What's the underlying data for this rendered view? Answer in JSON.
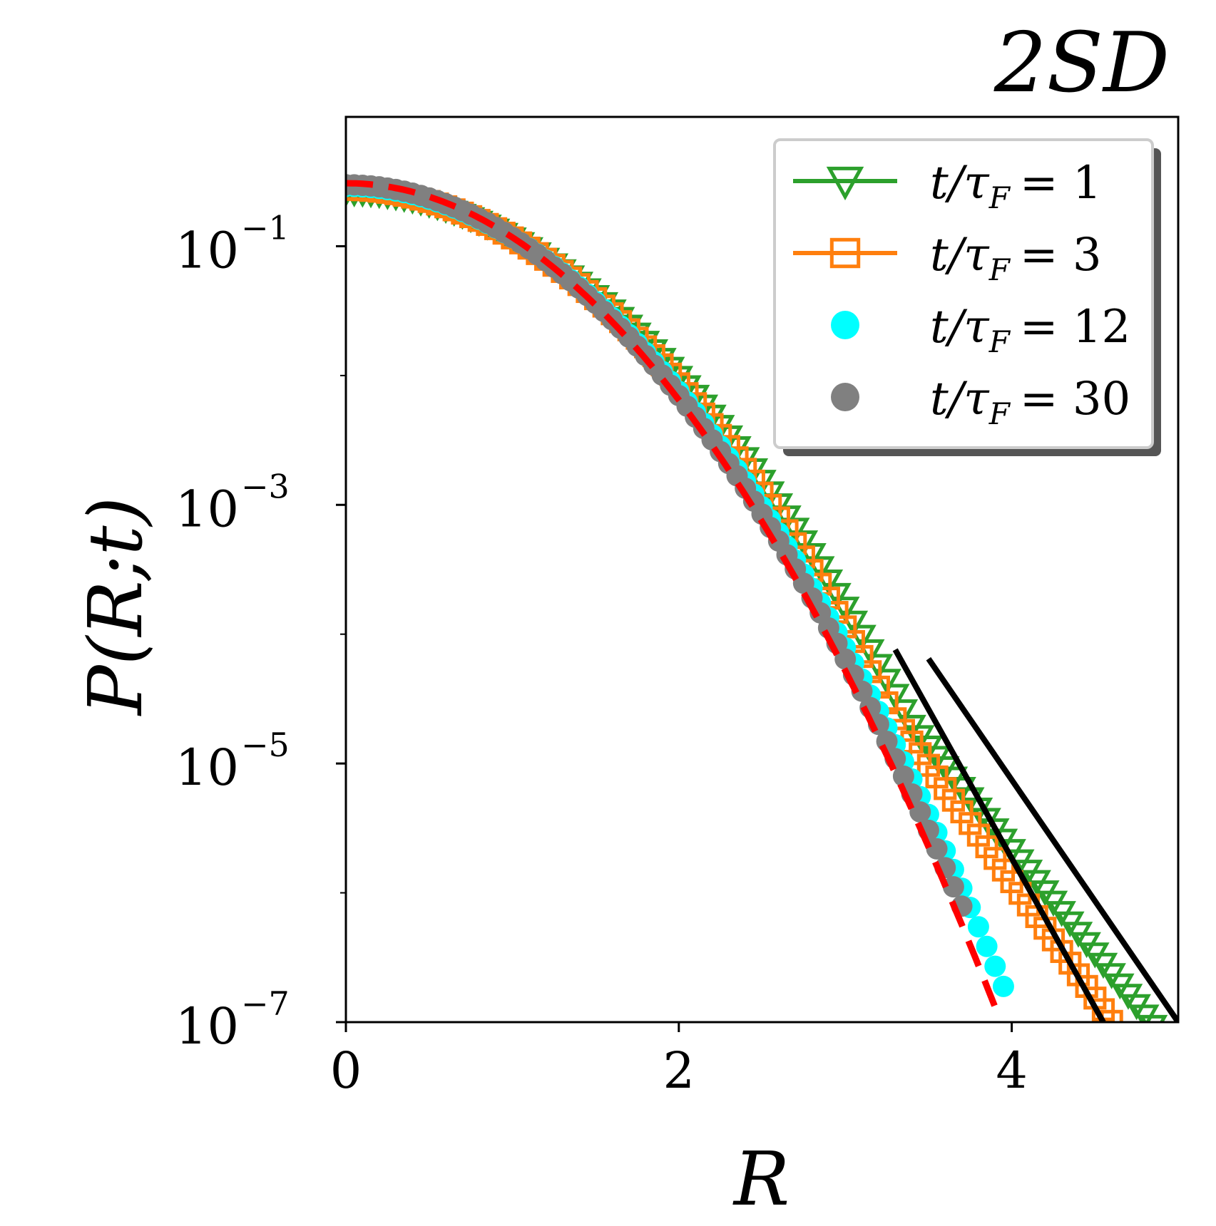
{
  "chart_data": {
    "type": "scatter",
    "title": "2SD",
    "xlabel": "R",
    "ylabel": "P(R;t)",
    "xlim": [
      0,
      5
    ],
    "ylim_log10": [
      -7,
      0
    ],
    "x_ticks": [
      {
        "value": 0,
        "label": "0"
      },
      {
        "value": 2,
        "label": "2"
      },
      {
        "value": 4,
        "label": "4"
      }
    ],
    "y_ticks": [
      {
        "value": -1,
        "base": "10",
        "exp": "−1"
      },
      {
        "value": -3,
        "base": "10",
        "exp": "−3"
      },
      {
        "value": -5,
        "base": "10",
        "exp": "−5"
      },
      {
        "value": -7,
        "base": "10",
        "exp": "−7"
      }
    ],
    "legend_position": "top-right",
    "series": [
      {
        "name": "t/τF = 1",
        "legend_label": "t/τ",
        "legend_sub": "F",
        "legend_value": "= 1",
        "marker": "triangle-down",
        "color": "#2ca02c",
        "sigma": 0.78,
        "tail_slope": -1.6,
        "tail_from": 3.4,
        "x_max": 5.0
      },
      {
        "name": "t/τF = 3",
        "legend_label": "t/τ",
        "legend_sub": "F",
        "legend_value": "= 3",
        "marker": "square",
        "color": "#ff7f0e",
        "sigma": 0.76,
        "tail_slope": -1.8,
        "tail_from": 3.3,
        "x_max": 4.6
      },
      {
        "name": "t/τF = 12",
        "legend_label": "t/τ",
        "legend_sub": "F",
        "legend_value": "= 12",
        "marker": "circle",
        "color": "#00ffff",
        "sigma": 0.74,
        "tail_slope": 0,
        "tail_from": 99,
        "x_max": 3.98
      },
      {
        "name": "t/τF = 30",
        "legend_label": "t/τ",
        "legend_sub": "F",
        "legend_value": "= 30",
        "marker": "circle",
        "color": "#808080",
        "sigma": 0.73,
        "tail_slope": 0,
        "tail_from": 99,
        "x_max": 3.7
      }
    ],
    "reference_curves": [
      {
        "name": "gaussian",
        "style": "dashed",
        "color": "#ff0000",
        "sigma": 0.72,
        "x_max": 3.9
      }
    ],
    "tail_fit_lines": [
      {
        "name": "fit-t1",
        "color": "#000000",
        "x": [
          3.5,
          5.0
        ],
        "log10_y": [
          -4.19,
          -7.0
        ]
      },
      {
        "name": "fit-t3",
        "color": "#000000",
        "x": [
          3.3,
          4.55
        ],
        "log10_y": [
          -4.12,
          -7.0
        ]
      }
    ]
  }
}
